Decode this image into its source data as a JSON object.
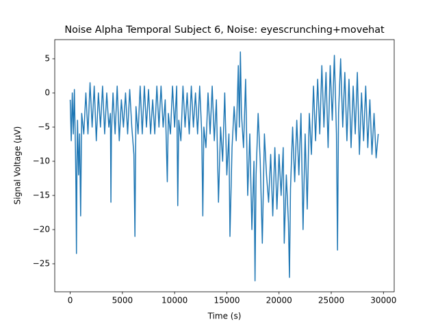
{
  "chart_data": {
    "type": "line",
    "title": "Noise Alpha Temporal Subject 6, Noise: eyescrunching+movehat",
    "x_label": "Time (s)",
    "y_label": "Signal Voltage (μV)",
    "x": [
      0,
      100,
      200,
      300,
      400,
      500,
      550,
      600,
      650,
      700,
      800,
      900,
      1000,
      1100,
      1300,
      1500,
      1700,
      1900,
      2100,
      2300,
      2500,
      2700,
      2900,
      3100,
      3300,
      3500,
      3700,
      3850,
      3900,
      3950,
      4100,
      4300,
      4500,
      4700,
      4900,
      5100,
      5300,
      5500,
      5700,
      5900,
      6100,
      6200,
      6300,
      6500,
      6700,
      6900,
      7100,
      7300,
      7500,
      7700,
      7900,
      8100,
      8300,
      8500,
      8700,
      8900,
      9100,
      9300,
      9400,
      9600,
      9800,
      10000,
      10200,
      10300,
      10400,
      10600,
      10800,
      11000,
      11200,
      11400,
      11600,
      11800,
      12000,
      12200,
      12400,
      12600,
      12700,
      12800,
      13000,
      13200,
      13400,
      13600,
      13800,
      14000,
      14200,
      14400,
      14600,
      14800,
      15000,
      15200,
      15300,
      15500,
      15700,
      15900,
      16100,
      16200,
      16300,
      16400,
      16600,
      16800,
      17000,
      17200,
      17400,
      17600,
      17700,
      17800,
      18000,
      18200,
      18400,
      18600,
      18800,
      19000,
      19200,
      19400,
      19600,
      19800,
      20000,
      20200,
      20400,
      20500,
      20700,
      20900,
      21000,
      21100,
      21300,
      21500,
      21700,
      21900,
      22100,
      22300,
      22500,
      22700,
      22900,
      23100,
      23300,
      23500,
      23700,
      23900,
      24100,
      24300,
      24500,
      24700,
      24900,
      25100,
      25300,
      25500,
      25600,
      25700,
      25900,
      26100,
      26300,
      26500,
      26700,
      26900,
      27100,
      27300,
      27500,
      27700,
      27900,
      28100,
      28300,
      28500,
      28700,
      28900,
      29100,
      29300,
      29500
    ],
    "series": [
      {
        "color": "#1f77b4",
        "values": [
          -1,
          -7,
          0,
          -6,
          0.5,
          -8,
          -14,
          -23.5,
          -10,
          -4,
          -12,
          -6,
          -18,
          -3,
          -6,
          0,
          -6,
          1.5,
          -5,
          1,
          -7,
          0,
          -5,
          1,
          -6,
          0,
          -5,
          -3,
          -16,
          -6,
          0,
          -6,
          1,
          -7,
          -1,
          -5,
          0,
          -6,
          0.5,
          -5,
          -9,
          -21,
          -2,
          -6,
          1,
          -6,
          1,
          -5,
          0.5,
          -6,
          -1,
          -6,
          1,
          -5,
          1,
          -5,
          -1,
          -13,
          -3,
          -6,
          1,
          -5,
          1,
          -16.5,
          -4,
          -7,
          1,
          -5,
          0,
          -6,
          1,
          -5,
          0,
          -6,
          1,
          -6,
          -18,
          -5,
          -8,
          0,
          -6,
          1,
          -7,
          -1,
          -16,
          -5,
          -10,
          0,
          -12,
          -6,
          -21,
          -8,
          -2,
          -7,
          4,
          -5,
          6,
          -3,
          -8,
          2,
          -15,
          -6,
          -20,
          -10,
          -27.5,
          -12,
          -3,
          -10,
          -22,
          -6,
          -12,
          -16,
          -9,
          -18,
          -8,
          -17,
          -9,
          -15,
          -8,
          -22,
          -12,
          -19,
          -27,
          -14,
          -5,
          -13,
          -4,
          -12,
          -3,
          -20,
          -6,
          -17,
          -3,
          -9,
          1,
          -7,
          2,
          -6,
          4,
          -5,
          3,
          -8,
          4,
          -4,
          5.5,
          -6,
          -23,
          -3,
          5,
          -5,
          3,
          -7,
          2,
          -8,
          1,
          -6,
          3,
          -9,
          0,
          -7,
          1,
          -8,
          -1,
          -9,
          -3,
          -9.5,
          -6
        ]
      }
    ],
    "xlim": [
      -1480,
      31030
    ],
    "ylim": [
      -29.1,
      7.8
    ],
    "xticks": [
      0,
      5000,
      10000,
      15000,
      20000,
      25000,
      30000
    ],
    "yticks": [
      {
        "value": -25,
        "label": "−25"
      },
      {
        "value": -20,
        "label": "−20"
      },
      {
        "value": -15,
        "label": "−15"
      },
      {
        "value": -10,
        "label": "−10"
      },
      {
        "value": -5,
        "label": "−5"
      },
      0,
      5
    ]
  }
}
